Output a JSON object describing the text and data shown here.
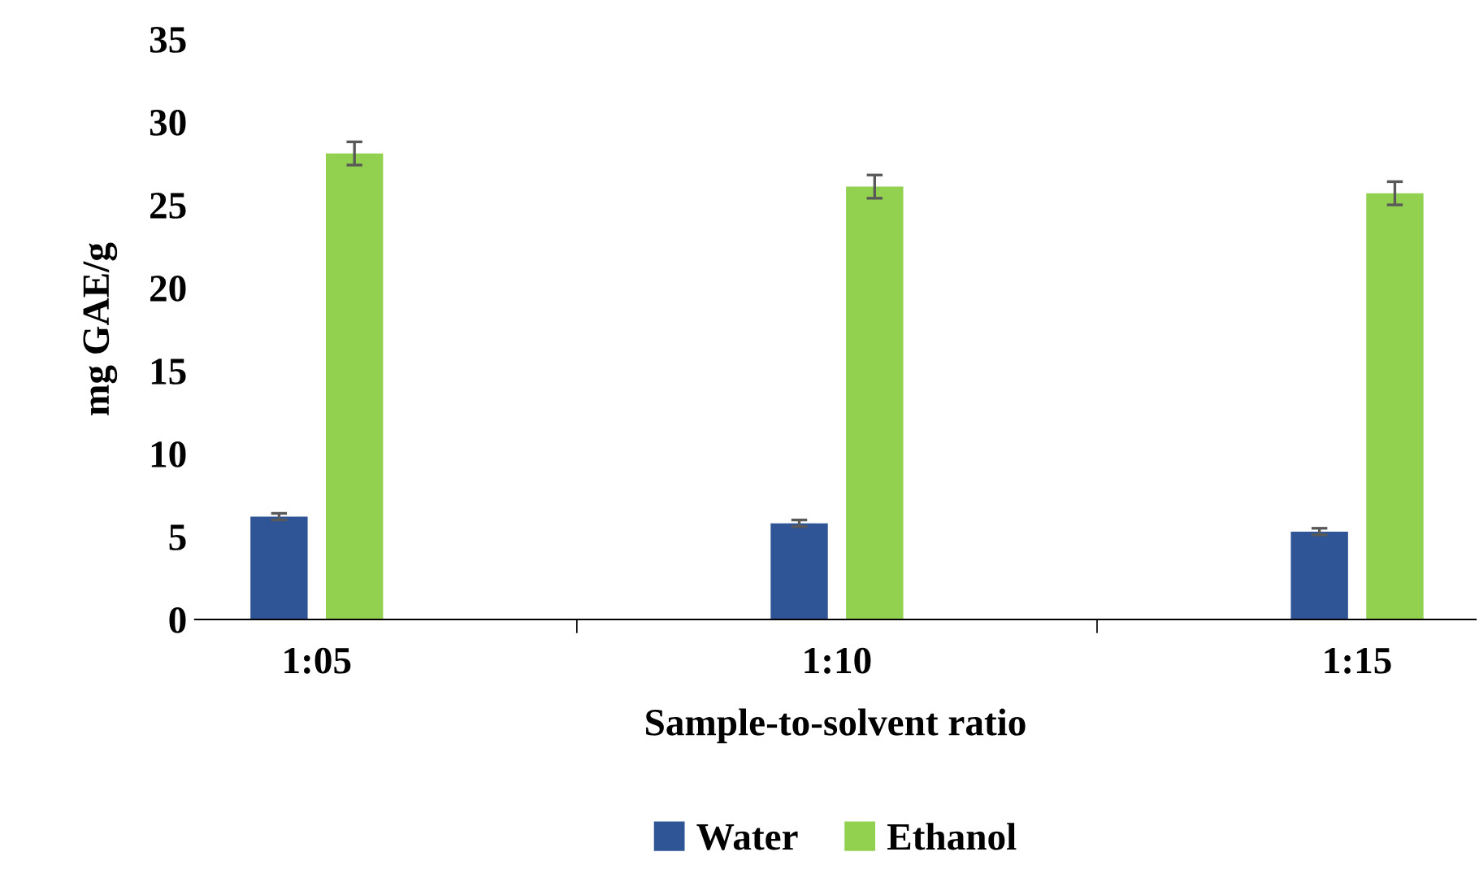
{
  "chart_data": {
    "type": "bar",
    "xlabel": "Sample-to-solvent ratio",
    "ylabel": "mg GAE/g",
    "categories": [
      "1:05",
      "1:10",
      "1:15"
    ],
    "series": [
      {
        "name": "Water",
        "color": "#2f5597",
        "values": [
          6.2,
          5.8,
          5.3
        ],
        "errors": [
          0.2,
          0.2,
          0.2
        ]
      },
      {
        "name": "Ethanol",
        "color": "#92d050",
        "values": [
          28.1,
          26.1,
          25.7
        ],
        "errors": [
          0.7,
          0.7,
          0.7
        ]
      }
    ],
    "ylim": [
      0,
      35
    ],
    "yticks": [
      0,
      5,
      10,
      15,
      20,
      25,
      30,
      35
    ],
    "grid": false,
    "legend": "bottom"
  }
}
